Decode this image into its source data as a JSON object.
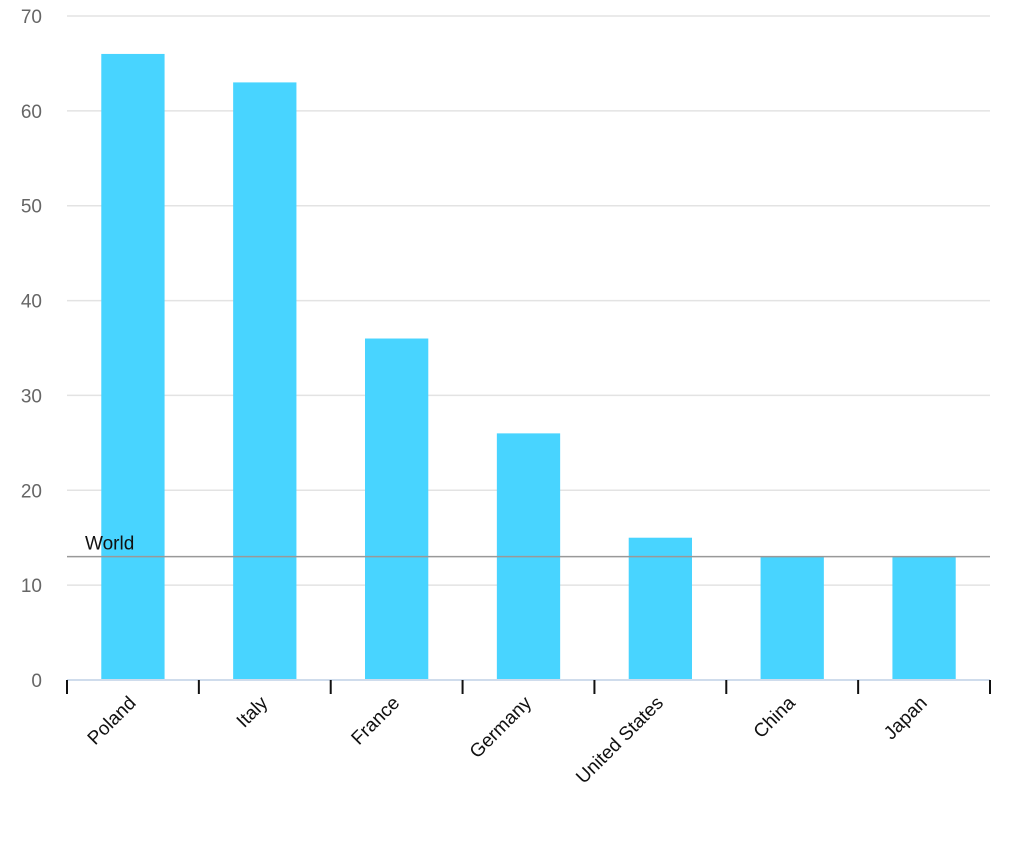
{
  "chart_data": {
    "type": "bar",
    "title": "",
    "xlabel": "",
    "ylabel": "",
    "categories": [
      "Poland",
      "Italy",
      "France",
      "Germany",
      "United States",
      "China",
      "Japan"
    ],
    "values": [
      66,
      63,
      36,
      26,
      15,
      13,
      13
    ],
    "ylim": [
      0,
      70
    ],
    "yticks": [
      0,
      10,
      20,
      30,
      40,
      50,
      60,
      70
    ],
    "grid": true,
    "bar_color": "#48d4ff",
    "reference_line": {
      "label": "World",
      "value": 13,
      "color": "#999999"
    }
  }
}
